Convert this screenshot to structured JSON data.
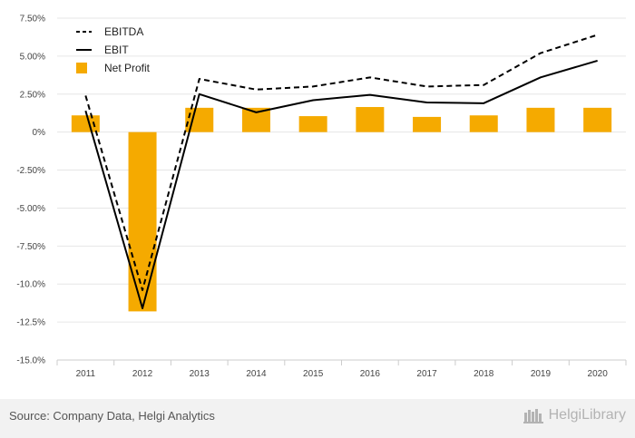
{
  "chart_data": {
    "type": "bar",
    "categories": [
      "2011",
      "2012",
      "2013",
      "2014",
      "2015",
      "2016",
      "2017",
      "2018",
      "2019",
      "2020"
    ],
    "series": [
      {
        "name": "EBITDA",
        "kind": "line",
        "style": "dashed",
        "color": "#000000",
        "values": [
          2.4,
          -10.4,
          3.5,
          2.8,
          3.0,
          3.6,
          3.0,
          3.1,
          5.2,
          6.4
        ]
      },
      {
        "name": "EBIT",
        "kind": "line",
        "style": "solid",
        "color": "#000000",
        "values": [
          1.4,
          -11.6,
          2.5,
          1.3,
          2.1,
          2.45,
          1.95,
          1.9,
          3.6,
          4.7
        ]
      },
      {
        "name": "Net Profit",
        "kind": "bar",
        "color": "#f5aa00",
        "values": [
          1.1,
          -11.8,
          1.6,
          1.6,
          1.05,
          1.65,
          1.0,
          1.1,
          1.6,
          1.6
        ]
      }
    ],
    "yticks": [
      "7.50%",
      "5.00%",
      "2.50%",
      "0%",
      "-2.50%",
      "-5.00%",
      "-7.50%",
      "-10.0%",
      "-12.5%",
      "-15.0%"
    ],
    "ylim": [
      -15,
      7.5
    ],
    "legend_position": "top-left",
    "grid": true
  },
  "footer": {
    "source": "Source: Company Data, Helgi Analytics",
    "brand": "HelgiLibrary"
  }
}
